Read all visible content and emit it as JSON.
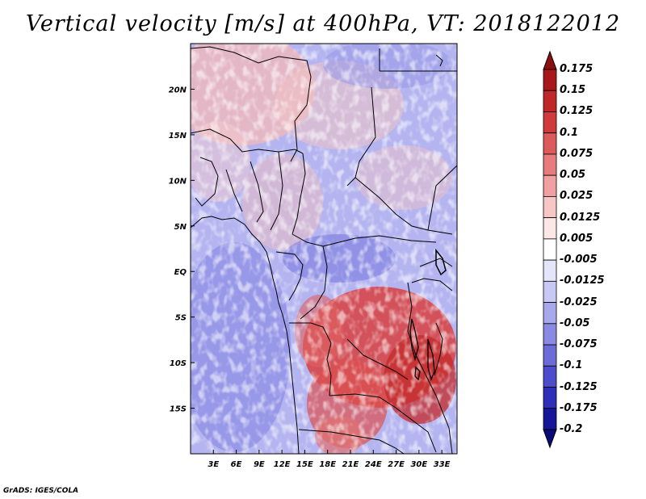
{
  "title": "Vertical velocity [m/s] at 400hPa, VT: 2018122012",
  "footer": "GrADS: IGES/COLA",
  "map": {
    "lon_range": [
      0,
      35
    ],
    "lat_range": [
      -20,
      25
    ],
    "lon_ticks": [
      {
        "value": 3,
        "label": "3E"
      },
      {
        "value": 6,
        "label": "6E"
      },
      {
        "value": 9,
        "label": "9E"
      },
      {
        "value": 12,
        "label": "12E"
      },
      {
        "value": 15,
        "label": "15E"
      },
      {
        "value": 18,
        "label": "18E"
      },
      {
        "value": 21,
        "label": "21E"
      },
      {
        "value": 24,
        "label": "24E"
      },
      {
        "value": 27,
        "label": "27E"
      },
      {
        "value": 30,
        "label": "30E"
      },
      {
        "value": 33,
        "label": "33E"
      }
    ],
    "lat_ticks": [
      {
        "value": 20,
        "label": "20N"
      },
      {
        "value": 15,
        "label": "15N"
      },
      {
        "value": 10,
        "label": "10N"
      },
      {
        "value": 5,
        "label": "5N"
      },
      {
        "value": 0,
        "label": "EQ"
      },
      {
        "value": -5,
        "label": "5S"
      },
      {
        "value": -10,
        "label": "10S"
      },
      {
        "value": -15,
        "label": "15S"
      }
    ],
    "field_pattern": "mixed weak ascent and descent; strong positive values over southern Congo basin and Zambia/Malawi; negative values over Atlantic and central Africa"
  },
  "colorbar": {
    "labels": [
      "0.175",
      "0.15",
      "0.125",
      "0.1",
      "0.075",
      "0.05",
      "0.025",
      "0.0125",
      "0.005",
      "-0.005",
      "-0.0125",
      "-0.025",
      "-0.05",
      "-0.075",
      "-0.1",
      "-0.125",
      "-0.175",
      "-0.2"
    ],
    "colors": [
      "#8b1010",
      "#a81818",
      "#c02828",
      "#d03a3a",
      "#dc5a5a",
      "#e87c7c",
      "#f0a0a0",
      "#f7c6c6",
      "#fce6e6",
      "#ffffff",
      "#e4e4fa",
      "#c8c8f4",
      "#a8a8ec",
      "#8a8ae4",
      "#6c6cd8",
      "#4c4ccc",
      "#2e2eb8",
      "#161698",
      "#0a0a78"
    ]
  }
}
